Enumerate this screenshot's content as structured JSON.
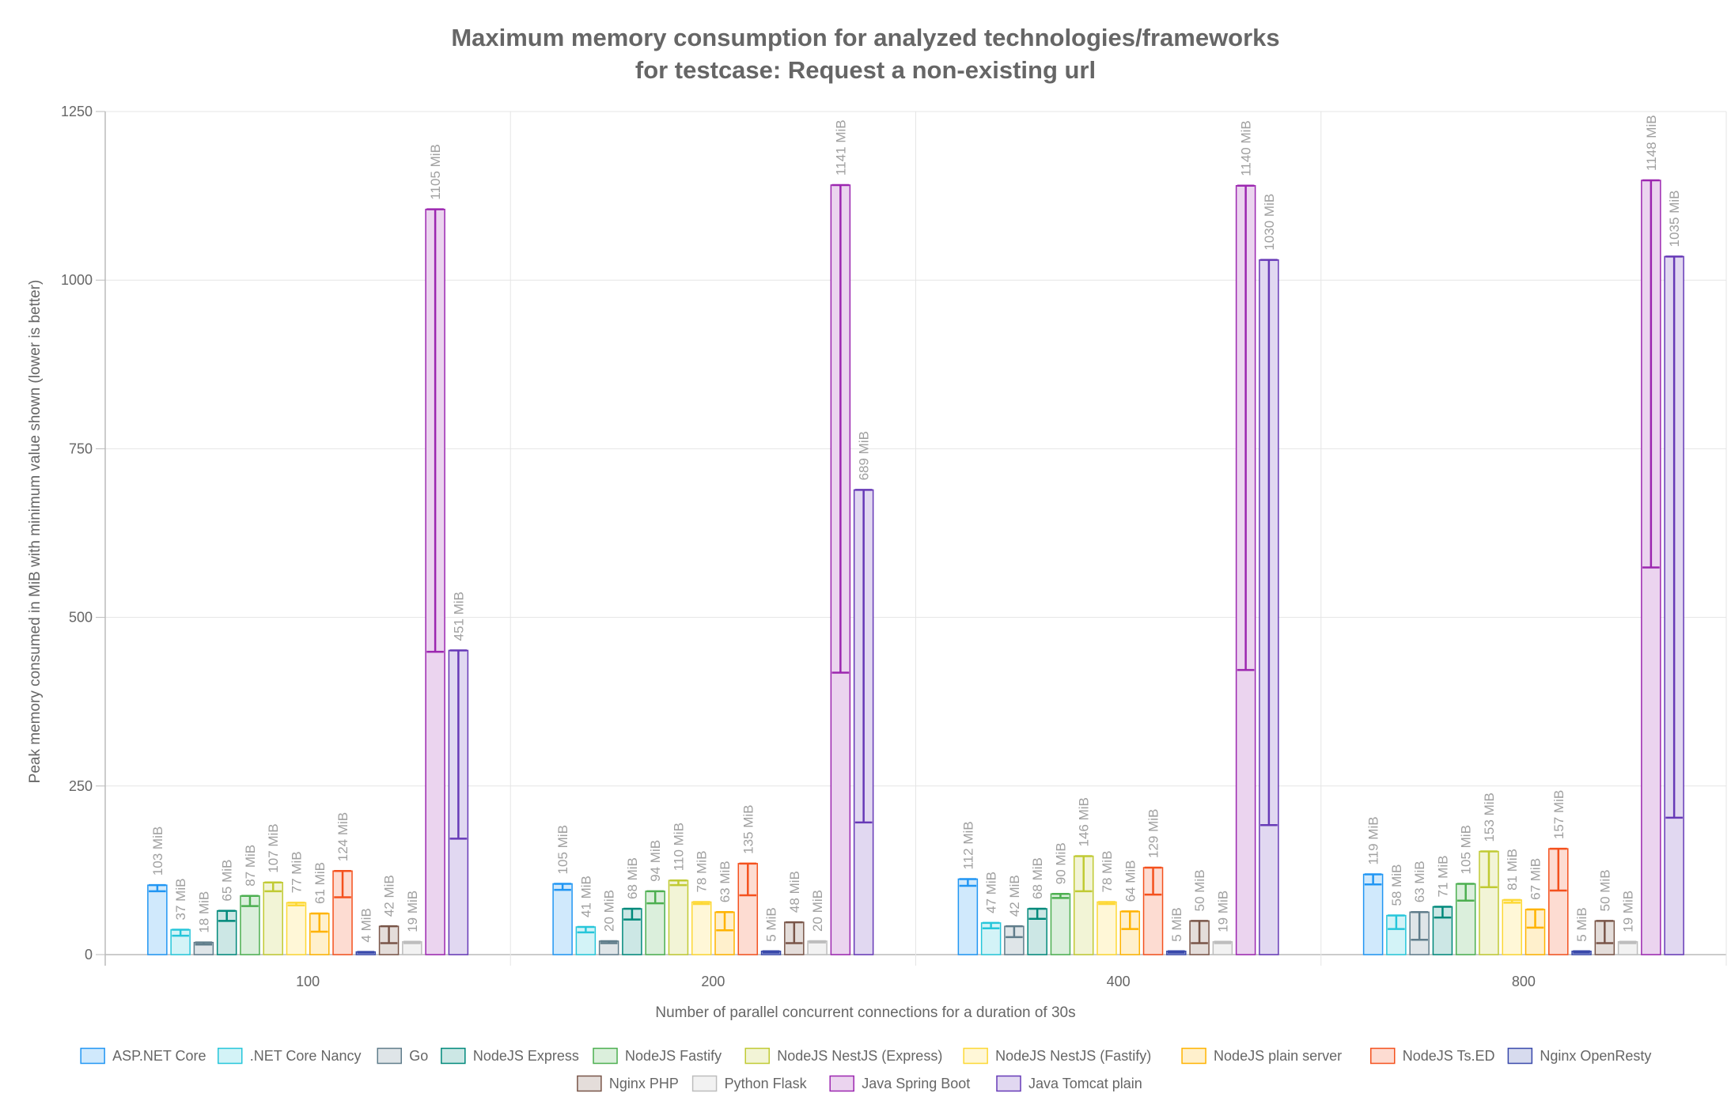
{
  "chart_data": {
    "type": "bar",
    "title": "Maximum memory consumption for analyzed technologies/frameworks",
    "subtitle": "for testcase: Request a non-existing url",
    "xlabel": "Number of parallel concurrent connections for a duration of 30s",
    "ylabel": "Peak memory consumed in MiB with minimum value shown (lower is better)",
    "ylim": [
      0,
      1250
    ],
    "yticks": [
      0,
      250,
      500,
      750,
      1000,
      1250
    ],
    "categories": [
      "100",
      "200",
      "400",
      "800"
    ],
    "value_suffix": " MiB",
    "grid": true,
    "legend_position": "bottom",
    "error_bars": "min-to-max",
    "series": [
      {
        "name": "ASP.NET Core",
        "color": "#2196f3",
        "fill": "#d0e9fc",
        "values": [
          103,
          105,
          112,
          119
        ],
        "min": [
          94,
          96,
          102,
          104
        ]
      },
      {
        "name": ".NET Core Nancy",
        "color": "#26c6da",
        "fill": "#d3f3f7",
        "values": [
          37,
          41,
          47,
          58
        ],
        "min": [
          28,
          33,
          39,
          38
        ]
      },
      {
        "name": "Go",
        "color": "#607d8b",
        "fill": "#dfe5e8",
        "values": [
          18,
          20,
          42,
          63
        ],
        "min": [
          15,
          17,
          26,
          22
        ]
      },
      {
        "name": "NodeJS Express",
        "color": "#00897b",
        "fill": "#cce7e5",
        "values": [
          65,
          68,
          68,
          71
        ],
        "min": [
          50,
          52,
          53,
          55
        ]
      },
      {
        "name": "NodeJS Fastify",
        "color": "#4caf50",
        "fill": "#dbefdc",
        "values": [
          87,
          94,
          90,
          105
        ],
        "min": [
          72,
          76,
          84,
          80
        ]
      },
      {
        "name": "NodeJS NestJS (Express)",
        "color": "#c0ca33",
        "fill": "#f2f4d6",
        "values": [
          107,
          110,
          146,
          153
        ],
        "min": [
          94,
          103,
          94,
          100
        ]
      },
      {
        "name": "NodeJS NestJS (Fastify)",
        "color": "#fdd835",
        "fill": "#fff7d7",
        "values": [
          77,
          78,
          78,
          81
        ],
        "min": [
          73,
          75,
          75,
          77
        ]
      },
      {
        "name": "NodeJS plain server",
        "color": "#ffb300",
        "fill": "#fff0cc",
        "values": [
          61,
          63,
          64,
          67
        ],
        "min": [
          34,
          36,
          38,
          40
        ]
      },
      {
        "name": "NodeJS Ts.ED",
        "color": "#f4511e",
        "fill": "#fddcd2",
        "values": [
          124,
          135,
          129,
          157
        ],
        "min": [
          85,
          88,
          89,
          95
        ]
      },
      {
        "name": "Nginx OpenResty",
        "color": "#3949ab",
        "fill": "#d7dbee",
        "values": [
          4,
          5,
          5,
          5
        ],
        "min": [
          3,
          3,
          3,
          3
        ]
      },
      {
        "name": "Nginx PHP",
        "color": "#795548",
        "fill": "#e4ddda",
        "values": [
          42,
          48,
          50,
          50
        ],
        "min": [
          17,
          17,
          17,
          17
        ]
      },
      {
        "name": "Python Flask",
        "color": "#bdbdbd",
        "fill": "#f2f2f2",
        "values": [
          19,
          20,
          19,
          19
        ],
        "min": [
          17,
          18,
          17,
          17
        ]
      },
      {
        "name": "Java Spring Boot",
        "color": "#9c27b0",
        "fill": "#ebd4ef",
        "values": [
          1105,
          1141,
          1140,
          1148
        ],
        "min": [
          449,
          418,
          422,
          574
        ]
      },
      {
        "name": "Java Tomcat plain",
        "color": "#673ab7",
        "fill": "#e1d8f1",
        "values": [
          451,
          689,
          1030,
          1035
        ],
        "min": [
          172,
          196,
          192,
          203
        ]
      }
    ]
  }
}
